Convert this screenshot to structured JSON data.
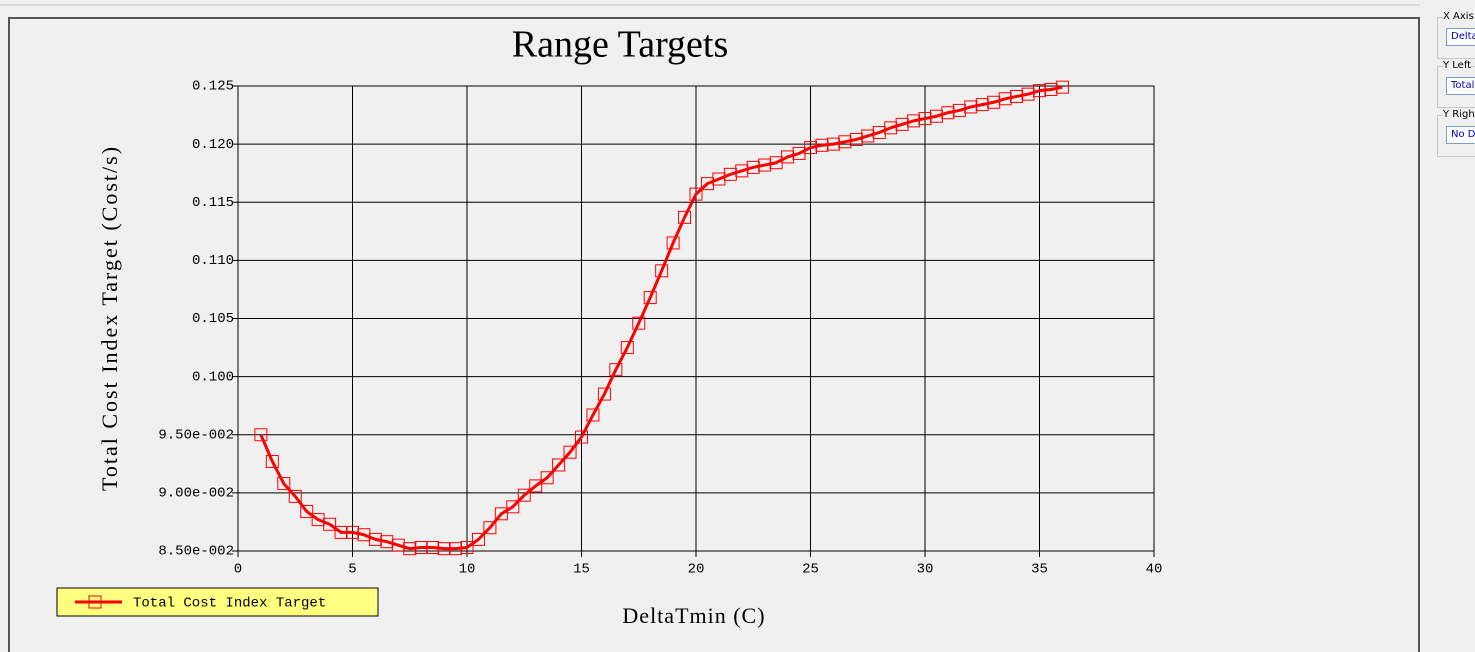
{
  "chart_data": {
    "type": "line",
    "title": "Range Targets",
    "xlabel": "DeltaTmin (C)",
    "ylabel": "Total Cost Index Target (Cost/s)",
    "x": [
      1.0,
      1.5,
      2.0,
      2.5,
      3.0,
      3.5,
      4.0,
      4.5,
      5.0,
      5.5,
      6.0,
      6.5,
      7.0,
      7.5,
      8.0,
      8.5,
      9.0,
      9.5,
      10.0,
      10.5,
      11.0,
      11.5,
      12.0,
      12.5,
      13.0,
      13.5,
      14.0,
      14.5,
      15.0,
      15.5,
      16.0,
      16.5,
      17.0,
      17.5,
      18.0,
      18.5,
      19.0,
      19.5,
      20.0,
      20.5,
      21.0,
      21.5,
      22.0,
      22.5,
      23.0,
      23.5,
      24.0,
      24.5,
      25.0,
      25.5,
      26.0,
      26.5,
      27.0,
      27.5,
      28.0,
      28.5,
      29.0,
      29.5,
      30.0,
      30.5,
      31.0,
      31.5,
      32.0,
      32.5,
      33.0,
      33.5,
      34.0,
      34.5,
      35.0,
      35.5,
      36.0
    ],
    "series": [
      {
        "name": "Total Cost Index Target",
        "color": "#ff0000",
        "values": [
          0.095,
          0.0927,
          0.0908,
          0.0897,
          0.0884,
          0.0877,
          0.0873,
          0.0866,
          0.0866,
          0.0864,
          0.086,
          0.0858,
          0.0855,
          0.0852,
          0.0853,
          0.0853,
          0.0852,
          0.0852,
          0.0853,
          0.086,
          0.087,
          0.0882,
          0.0888,
          0.0898,
          0.0906,
          0.0913,
          0.0924,
          0.0935,
          0.0948,
          0.0967,
          0.0985,
          0.1006,
          0.1025,
          0.1046,
          0.1068,
          0.1091,
          0.1115,
          0.1137,
          0.1157,
          0.1166,
          0.117,
          0.1174,
          0.1177,
          0.118,
          0.1182,
          0.1184,
          0.1189,
          0.1192,
          0.1197,
          0.1199,
          0.12,
          0.1202,
          0.1204,
          0.1207,
          0.121,
          0.1214,
          0.1217,
          0.122,
          0.1222,
          0.1224,
          0.1227,
          0.1229,
          0.1232,
          0.1234,
          0.1236,
          0.1239,
          0.1241,
          0.1243,
          0.1246,
          0.1247,
          0.1249
        ]
      }
    ],
    "xlim": [
      0,
      40
    ],
    "xticks": [
      0,
      5,
      10,
      15,
      20,
      25,
      30,
      35,
      40
    ],
    "ylim": [
      0.085,
      0.125
    ],
    "yticks": [
      {
        "value": 0.085,
        "label": "8.50e-002"
      },
      {
        "value": 0.09,
        "label": "9.00e-002"
      },
      {
        "value": 0.095,
        "label": "9.50e-002"
      },
      {
        "value": 0.1,
        "label": "0.100"
      },
      0.105,
      {
        "value": 0.11,
        "label": "0.110"
      },
      0.115,
      {
        "value": 0.12,
        "label": "0.120"
      },
      0.125
    ],
    "grid": true,
    "legend": "bottom-left"
  },
  "side_panel": [
    {
      "label": "X Axis",
      "value": "Delta"
    },
    {
      "label": "Y Left",
      "value": "Total"
    },
    {
      "label": "Y Righ",
      "value": "No D"
    }
  ]
}
